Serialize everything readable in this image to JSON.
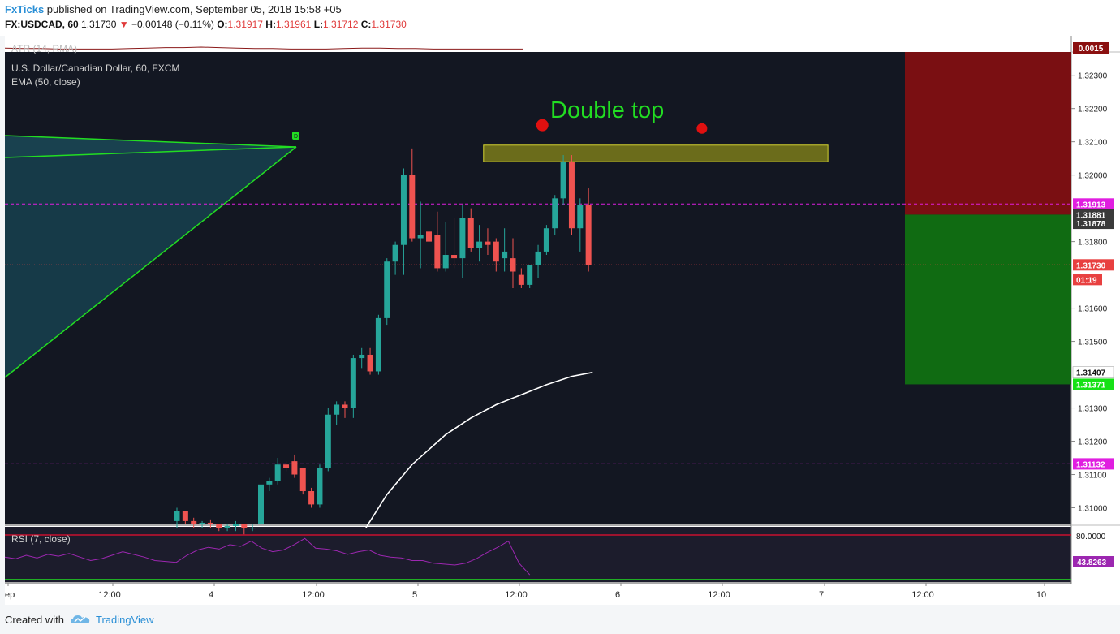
{
  "header": {
    "brand": "FxTicks",
    "published": " published on TradingView.com, September 05, 2018 15:58 +05",
    "symbol": "FX:USDCAD, 60",
    "last": "1.31730",
    "arrow": "▼",
    "change": "−0.00148 (−0.11%)",
    "o_label": "O:",
    "o_value": "1.31917",
    "h_label": "H:",
    "h_value": "1.31961",
    "l_label": "L:",
    "l_value": "1.31712",
    "c_label": "C:",
    "c_value": "1.31730"
  },
  "footer": {
    "created_with": "Created with",
    "tradingview": "TradingView"
  },
  "chart_data": {
    "type": "candlestick",
    "title": "U.S. Dollar/Canadian Dollar, 60, FXCM",
    "indicators": {
      "ema_label": "EMA (50, close)",
      "atr_label": "ATR (14, RMA)",
      "atr_value": "0.0015",
      "rsi_label": "RSI (7, close)",
      "rsi_level": "80.0000",
      "rsi_value": "43.8263"
    },
    "annotation": "Double top",
    "x_ticks": [
      "ep",
      "12:00",
      "4",
      "12:00",
      "5",
      "12:00",
      "6",
      "12:00",
      "7",
      "12:00",
      "10"
    ],
    "y_ticks": [
      "1.32300",
      "1.32200",
      "1.32100",
      "1.32000",
      "1.31800",
      "1.31600",
      "1.31500",
      "1.31300",
      "1.31200",
      "1.31100",
      "1.31000"
    ],
    "ylim": [
      1.3095,
      1.3237
    ],
    "price_labels": [
      {
        "text": "1.31913",
        "price": 1.31913,
        "color": "#e01ee0"
      },
      {
        "text": "1.31881",
        "price": 1.31881,
        "color": "#3a3a3a"
      },
      {
        "text": "1.31878",
        "price": 1.31855,
        "color": "#3a3a3a"
      },
      {
        "text": "1.31730",
        "price": 1.3173,
        "color": "#e84040"
      },
      {
        "text": "01:19",
        "price": 1.31686,
        "color": "#e84040"
      },
      {
        "text": "1.31407",
        "price": 1.31407,
        "color": "#ffffff"
      },
      {
        "text": "1.31371",
        "price": 1.31371,
        "color": "#17e117"
      },
      {
        "text": "1.31132",
        "price": 1.31132,
        "color": "#e01ee0"
      }
    ],
    "hlines": [
      {
        "price": 1.31913,
        "color": "#e01ee0",
        "dash": true
      },
      {
        "price": 1.31132,
        "color": "#e01ee0",
        "dash": true
      },
      {
        "price": 1.3173,
        "color": "#e84040",
        "dotted": true
      }
    ],
    "candles": [
      {
        "o": 1.3096,
        "h": 1.31,
        "l": 1.3094,
        "c": 1.3099
      },
      {
        "o": 1.3099,
        "h": 1.3099,
        "l": 1.3095,
        "c": 1.3096
      },
      {
        "o": 1.3096,
        "h": 1.3097,
        "l": 1.3094,
        "c": 1.3095
      },
      {
        "o": 1.3095,
        "h": 1.3096,
        "l": 1.3094,
        "c": 1.30955
      },
      {
        "o": 1.30955,
        "h": 1.30965,
        "l": 1.3094,
        "c": 1.3095
      },
      {
        "o": 1.3095,
        "h": 1.3095,
        "l": 1.3093,
        "c": 1.3094
      },
      {
        "o": 1.3094,
        "h": 1.3095,
        "l": 1.3093,
        "c": 1.30945
      },
      {
        "o": 1.30945,
        "h": 1.3096,
        "l": 1.3093,
        "c": 1.3095
      },
      {
        "o": 1.3095,
        "h": 1.3095,
        "l": 1.3092,
        "c": 1.3094
      },
      {
        "o": 1.3094,
        "h": 1.3095,
        "l": 1.3093,
        "c": 1.3094
      },
      {
        "o": 1.3095,
        "h": 1.3108,
        "l": 1.3093,
        "c": 1.3107
      },
      {
        "o": 1.3107,
        "h": 1.3109,
        "l": 1.3105,
        "c": 1.3108
      },
      {
        "o": 1.3108,
        "h": 1.3115,
        "l": 1.3107,
        "c": 1.3113
      },
      {
        "o": 1.3113,
        "h": 1.3114,
        "l": 1.3111,
        "c": 1.3112
      },
      {
        "o": 1.3114,
        "h": 1.3116,
        "l": 1.3109,
        "c": 1.311
      },
      {
        "o": 1.3112,
        "h": 1.3112,
        "l": 1.3104,
        "c": 1.3105
      },
      {
        "o": 1.3105,
        "h": 1.3106,
        "l": 1.31,
        "c": 1.3101
      },
      {
        "o": 1.3101,
        "h": 1.3113,
        "l": 1.31,
        "c": 1.3112
      },
      {
        "o": 1.3112,
        "h": 1.313,
        "l": 1.3111,
        "c": 1.3128
      },
      {
        "o": 1.3128,
        "h": 1.3132,
        "l": 1.3125,
        "c": 1.3131
      },
      {
        "o": 1.3131,
        "h": 1.3132,
        "l": 1.3127,
        "c": 1.313
      },
      {
        "o": 1.313,
        "h": 1.3146,
        "l": 1.3127,
        "c": 1.3145
      },
      {
        "o": 1.3145,
        "h": 1.3148,
        "l": 1.3142,
        "c": 1.3146
      },
      {
        "o": 1.3146,
        "h": 1.3148,
        "l": 1.314,
        "c": 1.3141
      },
      {
        "o": 1.3141,
        "h": 1.3158,
        "l": 1.314,
        "c": 1.3157
      },
      {
        "o": 1.3157,
        "h": 1.3175,
        "l": 1.3155,
        "c": 1.3174
      },
      {
        "o": 1.3174,
        "h": 1.318,
        "l": 1.317,
        "c": 1.3179
      },
      {
        "o": 1.3179,
        "h": 1.3202,
        "l": 1.317,
        "c": 1.32
      },
      {
        "o": 1.32,
        "h": 1.3208,
        "l": 1.318,
        "c": 1.3181
      },
      {
        "o": 1.3181,
        "h": 1.3192,
        "l": 1.3172,
        "c": 1.3182
      },
      {
        "o": 1.3183,
        "h": 1.3191,
        "l": 1.3175,
        "c": 1.318
      },
      {
        "o": 1.3182,
        "h": 1.3189,
        "l": 1.3171,
        "c": 1.3172
      },
      {
        "o": 1.3172,
        "h": 1.3186,
        "l": 1.3171,
        "c": 1.3176
      },
      {
        "o": 1.3176,
        "h": 1.3187,
        "l": 1.3172,
        "c": 1.3175
      },
      {
        "o": 1.3175,
        "h": 1.3191,
        "l": 1.3169,
        "c": 1.3187
      },
      {
        "o": 1.3187,
        "h": 1.319,
        "l": 1.3177,
        "c": 1.3178
      },
      {
        "o": 1.3178,
        "h": 1.3185,
        "l": 1.3174,
        "c": 1.318
      },
      {
        "o": 1.318,
        "h": 1.3184,
        "l": 1.3176,
        "c": 1.3179
      },
      {
        "o": 1.318,
        "h": 1.3181,
        "l": 1.3171,
        "c": 1.3174
      },
      {
        "o": 1.3175,
        "h": 1.3184,
        "l": 1.3171,
        "c": 1.3177
      },
      {
        "o": 1.3175,
        "h": 1.3181,
        "l": 1.3166,
        "c": 1.3171
      },
      {
        "o": 1.317,
        "h": 1.3172,
        "l": 1.3166,
        "c": 1.3167
      },
      {
        "o": 1.3167,
        "h": 1.3172,
        "l": 1.3166,
        "c": 1.3173
      },
      {
        "o": 1.3173,
        "h": 1.3179,
        "l": 1.3169,
        "c": 1.3177
      },
      {
        "o": 1.3177,
        "h": 1.3185,
        "l": 1.3176,
        "c": 1.3184
      },
      {
        "o": 1.3184,
        "h": 1.3194,
        "l": 1.3182,
        "c": 1.3193
      },
      {
        "o": 1.3193,
        "h": 1.3206,
        "l": 1.3191,
        "c": 1.3204
      },
      {
        "o": 1.3204,
        "h": 1.3206,
        "l": 1.3182,
        "c": 1.3184
      },
      {
        "o": 1.3184,
        "h": 1.3193,
        "l": 1.3177,
        "c": 1.3191
      },
      {
        "o": 1.3191,
        "h": 1.3196,
        "l": 1.3171,
        "c": 1.3173
      }
    ],
    "ema": [
      {
        "i": 22.5,
        "p": 1.3094
      },
      {
        "i": 25,
        "p": 1.3104
      },
      {
        "i": 28,
        "p": 1.3113
      },
      {
        "i": 32,
        "p": 1.3122
      },
      {
        "i": 35,
        "p": 1.3127
      },
      {
        "i": 38,
        "p": 1.3131
      },
      {
        "i": 41,
        "p": 1.3134
      },
      {
        "i": 44,
        "p": 1.3137
      },
      {
        "i": 47,
        "p": 1.31395
      },
      {
        "i": 49.5,
        "p": 1.31407
      }
    ],
    "rsi": [
      64,
      62,
      66,
      63,
      67,
      65,
      68,
      64,
      60,
      62,
      66,
      70,
      67,
      64,
      60,
      59,
      58,
      66,
      72,
      75,
      73,
      78,
      76,
      82,
      74,
      70,
      72,
      78,
      85,
      74,
      73,
      71,
      67,
      70,
      72,
      66,
      64,
      63,
      60,
      60,
      57,
      56,
      55,
      57,
      62,
      69,
      75,
      82,
      57,
      43.8
    ],
    "atr": [
      0.0017,
      0.0016,
      0.0016,
      0.0015,
      0.0015,
      0.0015,
      0.0015,
      0.0016,
      0.0017,
      0.0018,
      0.0018,
      0.0019,
      0.0018,
      0.0017,
      0.0016,
      0.0016,
      0.0015,
      0.0015,
      0.0015,
      0.0016,
      0.0017,
      0.0017,
      0.0016,
      0.0016,
      0.0015,
      0.0015,
      0.0015,
      0.0015,
      0.0015,
      0.0015
    ],
    "zone": {
      "p_high": 1.3209,
      "p_low": 1.3204,
      "i_start": 36.5,
      "i_end": 77.5
    },
    "tops": [
      {
        "i": 43.5,
        "p": 1.3215
      },
      {
        "i": 62.5,
        "p": 1.3214
      }
    ],
    "risk_reward": {
      "stop": 1.3237,
      "entry": 1.31881,
      "target": 1.31371
    }
  }
}
